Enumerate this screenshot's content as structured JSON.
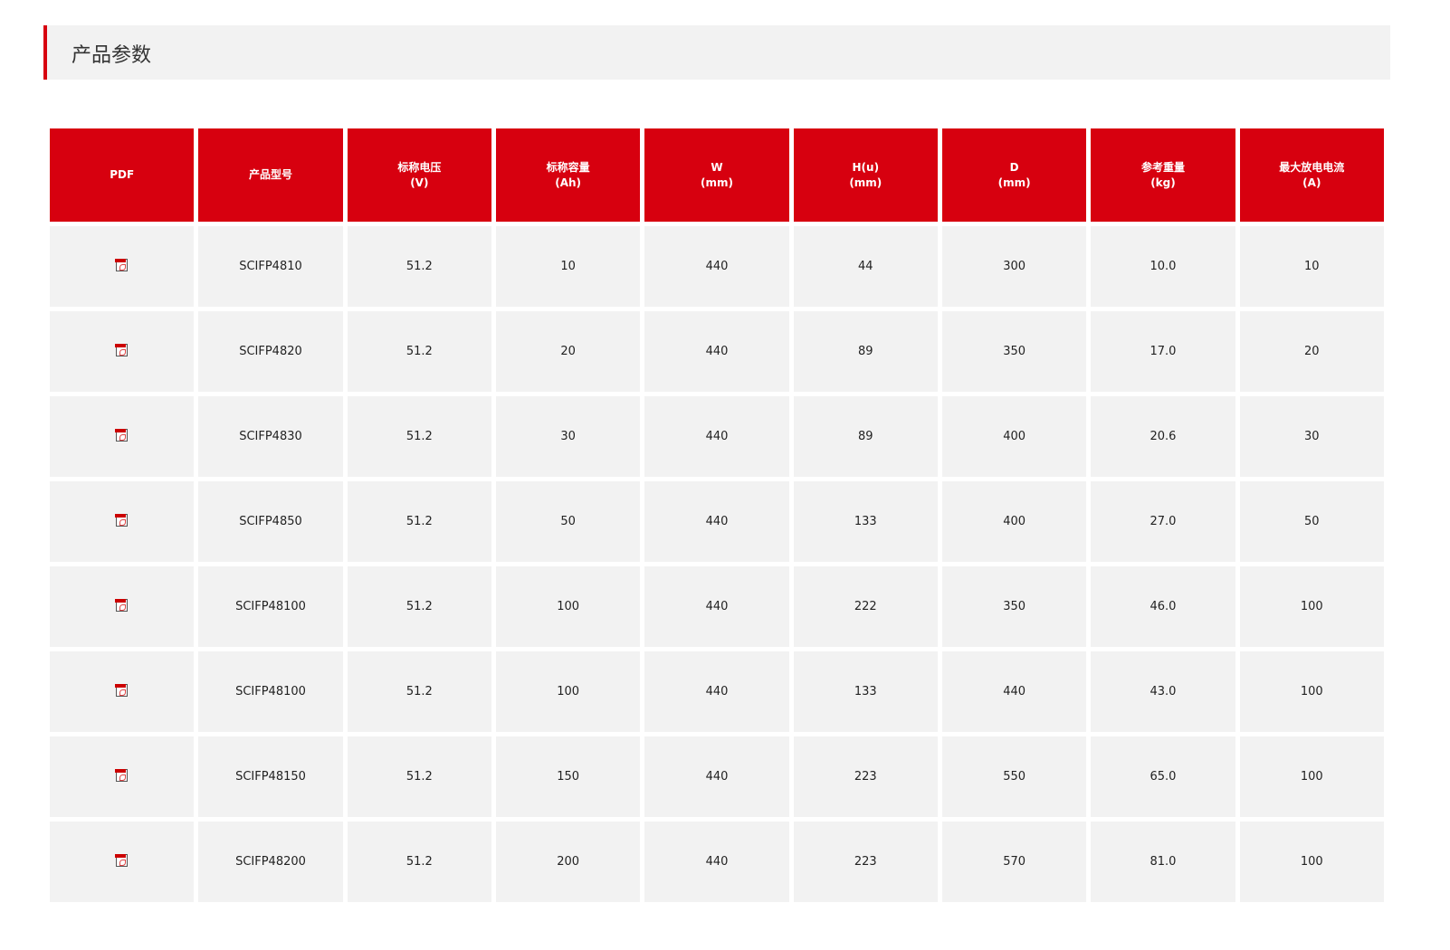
{
  "title": "产品参数",
  "colors": {
    "accent": "#d7000f",
    "cell_bg": "#f2f2f2"
  },
  "headers": [
    [
      "PDF",
      ""
    ],
    [
      "产品型号",
      ""
    ],
    [
      "标称电压",
      "(V)"
    ],
    [
      "标称容量",
      "(Ah)"
    ],
    [
      "W",
      "(mm)"
    ],
    [
      "H(u)",
      "(mm)"
    ],
    [
      "D",
      "(mm)"
    ],
    [
      "参考重量",
      "(kg)"
    ],
    [
      "最大放电电流",
      "(A)"
    ]
  ],
  "rows": [
    [
      "SCIFP4810",
      "51.2",
      "10",
      "440",
      "44",
      "300",
      "10.0",
      "10"
    ],
    [
      "SCIFP4820",
      "51.2",
      "20",
      "440",
      "89",
      "350",
      "17.0",
      "20"
    ],
    [
      "SCIFP4830",
      "51.2",
      "30",
      "440",
      "89",
      "400",
      "20.6",
      "30"
    ],
    [
      "SCIFP4850",
      "51.2",
      "50",
      "440",
      "133",
      "400",
      "27.0",
      "50"
    ],
    [
      "SCIFP48100",
      "51.2",
      "100",
      "440",
      "222",
      "350",
      "46.0",
      "100"
    ],
    [
      "SCIFP48100",
      "51.2",
      "100",
      "440",
      "133",
      "440",
      "43.0",
      "100"
    ],
    [
      "SCIFP48150",
      "51.2",
      "150",
      "440",
      "223",
      "550",
      "65.0",
      "100"
    ],
    [
      "SCIFP48200",
      "51.2",
      "200",
      "440",
      "223",
      "570",
      "81.0",
      "100"
    ]
  ],
  "pdf_icon": "pdf-file-icon"
}
